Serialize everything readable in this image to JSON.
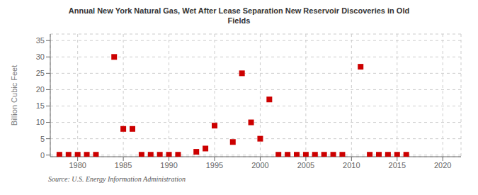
{
  "chart_data": {
    "type": "scatter",
    "title": "Annual New York Natural Gas, Wet After Lease Separation New Reservoir Discoveries in Old\nFields",
    "ylabel": "Billion Cubic Feet",
    "source": "Source: U.S. Energy Information Administration",
    "x": [
      1978,
      1979,
      1980,
      1981,
      1982,
      1984,
      1985,
      1986,
      1987,
      1988,
      1989,
      1990,
      1991,
      1993,
      1994,
      1995,
      1997,
      1998,
      1999,
      2000,
      2001,
      2002,
      2003,
      2004,
      2005,
      2006,
      2007,
      2008,
      2009,
      2011,
      2012,
      2013,
      2014,
      2015,
      2016
    ],
    "values": [
      0.1,
      0.1,
      0.1,
      0.1,
      0.1,
      30.0,
      8.0,
      8.0,
      0.1,
      0.1,
      0.1,
      0.1,
      0.1,
      1.0,
      2.0,
      9.0,
      4.0,
      25.0,
      10.0,
      5.0,
      17.0,
      0.1,
      0.1,
      0.1,
      0.1,
      0.1,
      0.1,
      0.1,
      0.1,
      27.0,
      0.1,
      0.1,
      0.1,
      0.1,
      0.1
    ],
    "xlim": [
      1977,
      2022
    ],
    "ylim": [
      -0.5,
      37
    ],
    "xticks": [
      1980,
      1985,
      1990,
      1995,
      2000,
      2005,
      2010,
      2015,
      2020
    ],
    "yticks": [
      0,
      5,
      10,
      15,
      20,
      25,
      30,
      35
    ],
    "grid": true,
    "color": "#cc0000",
    "marker": "square"
  }
}
